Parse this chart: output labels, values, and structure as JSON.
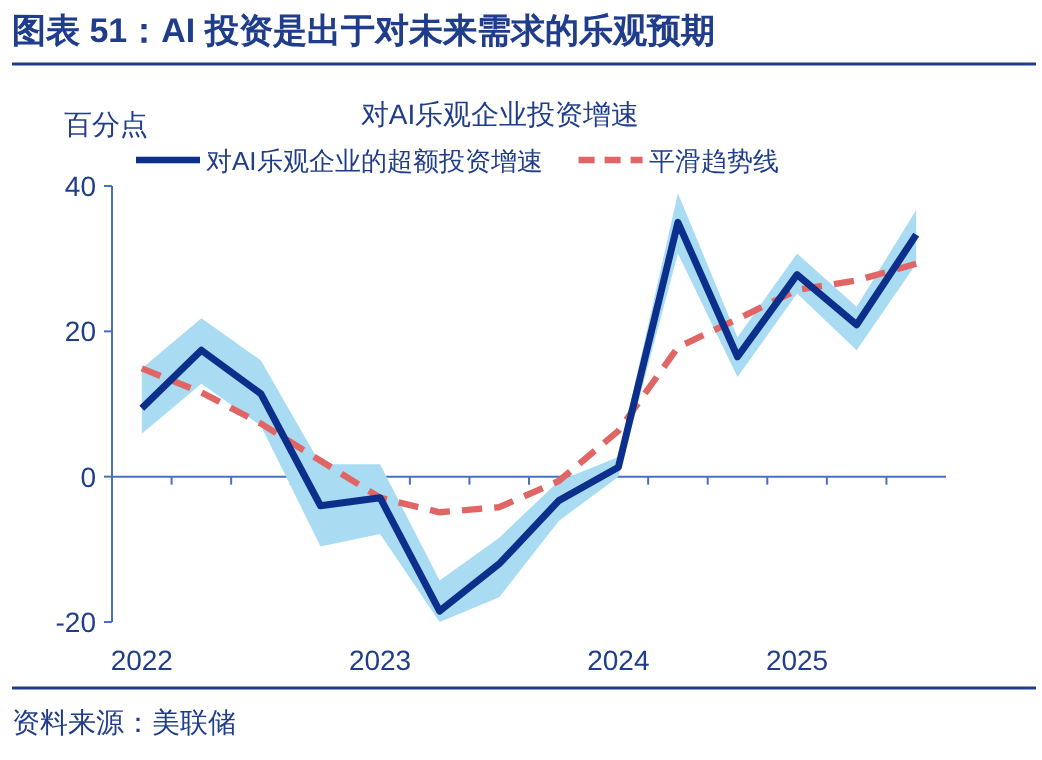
{
  "chart_data": {
    "type": "line",
    "title": "图表 51：AI 投资是出于对未来需求的乐观预期",
    "subtitle": "对AI乐观企业投资增速",
    "ylabel": "百分点",
    "annotations": [
      "资料来源：美联储"
    ],
    "categories": [
      "2022",
      null,
      null,
      null,
      "2023",
      null,
      null,
      null,
      "2024",
      null,
      null,
      "2025",
      null,
      null
    ],
    "ref_lines": [
      {
        "axis": "y",
        "value": 0,
        "color": "#4a6fc0"
      }
    ],
    "ylim": [
      -20,
      40
    ],
    "yticks": [
      -20,
      0,
      20,
      40
    ],
    "grid": false,
    "legend": "top",
    "marker": "none",
    "series": [
      {
        "name": "对AI乐观企业的超额投资增速",
        "color": "#0b2f8a",
        "line_style": "solid",
        "values": [
          9.4,
          17.4,
          11.4,
          -4.0,
          -2.9,
          -18.5,
          -12.0,
          -3.3,
          1.3,
          35.0,
          16.5,
          27.8,
          20.9,
          33.3
        ],
        "lower": [
          5.9,
          12.8,
          7.0,
          -9.6,
          -7.9,
          -20,
          -16.6,
          -6.1,
          0,
          30.7,
          13.7,
          25.2,
          17.4,
          29.3
        ],
        "upper": [
          14.9,
          21.8,
          16.0,
          1.7,
          1.7,
          -14.3,
          -8.4,
          -0.6,
          2.7,
          39.0,
          19.2,
          30.7,
          23.4,
          36.7
        ]
      },
      {
        "name": "平滑趋势线",
        "color": "#e06666",
        "line_style": "dashed",
        "values": [
          14.9,
          11.6,
          7.3,
          2.2,
          -2.9,
          -4.9,
          -4.2,
          -0.6,
          6.3,
          17.8,
          21.7,
          25.7,
          27.0,
          29.3
        ]
      }
    ]
  }
}
